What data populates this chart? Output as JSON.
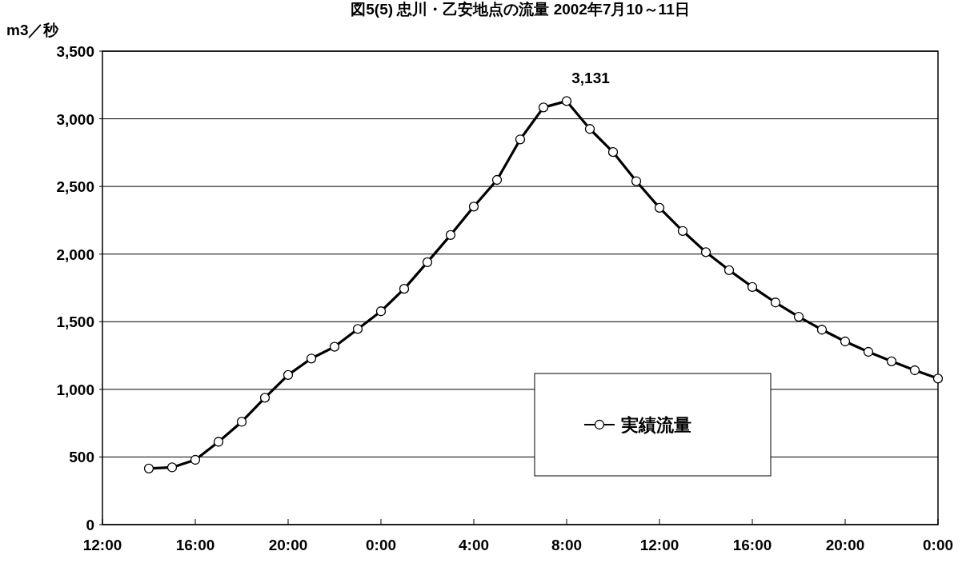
{
  "chart_data": {
    "type": "line",
    "title": "図5(5) 忠川・乙安地点の流量 2002年7月10～11日",
    "ylabel": "m3／秒",
    "x": [
      "2002-07-10T14:00",
      "2002-07-10T15:00",
      "2002-07-10T16:00",
      "2002-07-10T17:00",
      "2002-07-10T18:00",
      "2002-07-10T19:00",
      "2002-07-10T20:00",
      "2002-07-10T21:00",
      "2002-07-10T22:00",
      "2002-07-10T23:00",
      "2002-07-11T00:00",
      "2002-07-11T01:00",
      "2002-07-11T02:00",
      "2002-07-11T03:00",
      "2002-07-11T04:00",
      "2002-07-11T05:00",
      "2002-07-11T06:00",
      "2002-07-11T07:00",
      "2002-07-11T08:00",
      "2002-07-11T09:00",
      "2002-07-11T10:00",
      "2002-07-11T11:00",
      "2002-07-11T12:00",
      "2002-07-11T13:00",
      "2002-07-11T14:00",
      "2002-07-11T15:00",
      "2002-07-11T16:00",
      "2002-07-11T17:00",
      "2002-07-11T18:00",
      "2002-07-11T19:00",
      "2002-07-11T20:00",
      "2002-07-11T21:00",
      "2002-07-11T22:00",
      "2002-07-11T23:00",
      "2002-07-12T00:00"
    ],
    "series": [
      {
        "name": "実績流量",
        "color": "#000000",
        "values": [
          415,
          423,
          479,
          612,
          760,
          938,
          1106,
          1228,
          1315,
          1446,
          1577,
          1743,
          1940,
          2141,
          2351,
          2548,
          2848,
          3084,
          3131,
          2925,
          2754,
          2539,
          2342,
          2171,
          2014,
          1881,
          1757,
          1642,
          1537,
          1441,
          1354,
          1277,
          1207,
          1141,
          1080
        ],
        "value_labels": [
          null,
          null,
          null,
          null,
          null,
          null,
          null,
          null,
          null,
          null,
          null,
          null,
          null,
          null,
          null,
          null,
          null,
          null,
          "3,131",
          null,
          null,
          null,
          null,
          null,
          null,
          null,
          null,
          null,
          null,
          null,
          null,
          null,
          null,
          null,
          null
        ]
      }
    ],
    "xlim": [
      "2002-07-10T12:00",
      "2002-07-12T00:00"
    ],
    "xticks": [
      {
        "value": "2002-07-10T12:00",
        "label": "12:00"
      },
      {
        "value": "2002-07-10T16:00",
        "label": "16:00"
      },
      {
        "value": "2002-07-10T20:00",
        "label": "20:00"
      },
      {
        "value": "2002-07-11T00:00",
        "label": "0:00"
      },
      {
        "value": "2002-07-11T04:00",
        "label": "4:00"
      },
      {
        "value": "2002-07-11T08:00",
        "label": "8:00"
      },
      {
        "value": "2002-07-11T12:00",
        "label": "12:00"
      },
      {
        "value": "2002-07-11T16:00",
        "label": "16:00"
      },
      {
        "value": "2002-07-11T20:00",
        "label": "20:00"
      },
      {
        "value": "2002-07-12T00:00",
        "label": "0:00"
      }
    ],
    "ylim": [
      0,
      3500
    ],
    "yticks": [
      0,
      500,
      {
        "value": 1000,
        "label": "1,000"
      },
      {
        "value": 1500,
        "label": "1,500"
      },
      {
        "value": 2000,
        "label": "2,000"
      },
      {
        "value": 2500,
        "label": "2,500"
      },
      {
        "value": 3000,
        "label": "3,000"
      },
      {
        "value": 3500,
        "label": "3,500"
      }
    ],
    "grid": "y",
    "legend": "bottom right",
    "marker": "circle",
    "line_style": "solid"
  }
}
